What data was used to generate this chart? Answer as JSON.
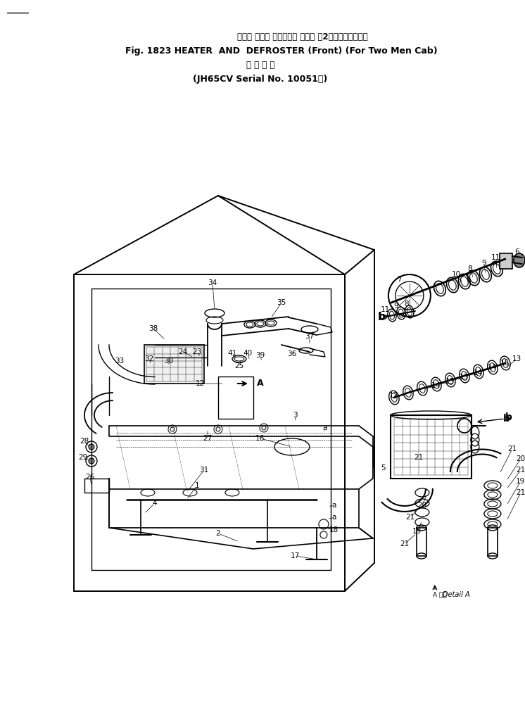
{
  "bg_color": "#ffffff",
  "fg_color": "#000000",
  "title_line1": "ヒータ および デフロスタ （前） （2人乗りキャブ用）",
  "title_line2_a": "Fig. 1823",
  "title_line2_b": "HEATER  AND  DEFROSTER",
  "title_line2_c": "(Front)",
  "title_line2_d": "(For Two Men Cab)",
  "title_line3": "適 用 号 機",
  "title_line4": "(JH65CV Serial No. 10051〜)",
  "detail_a_text": "Detail A"
}
